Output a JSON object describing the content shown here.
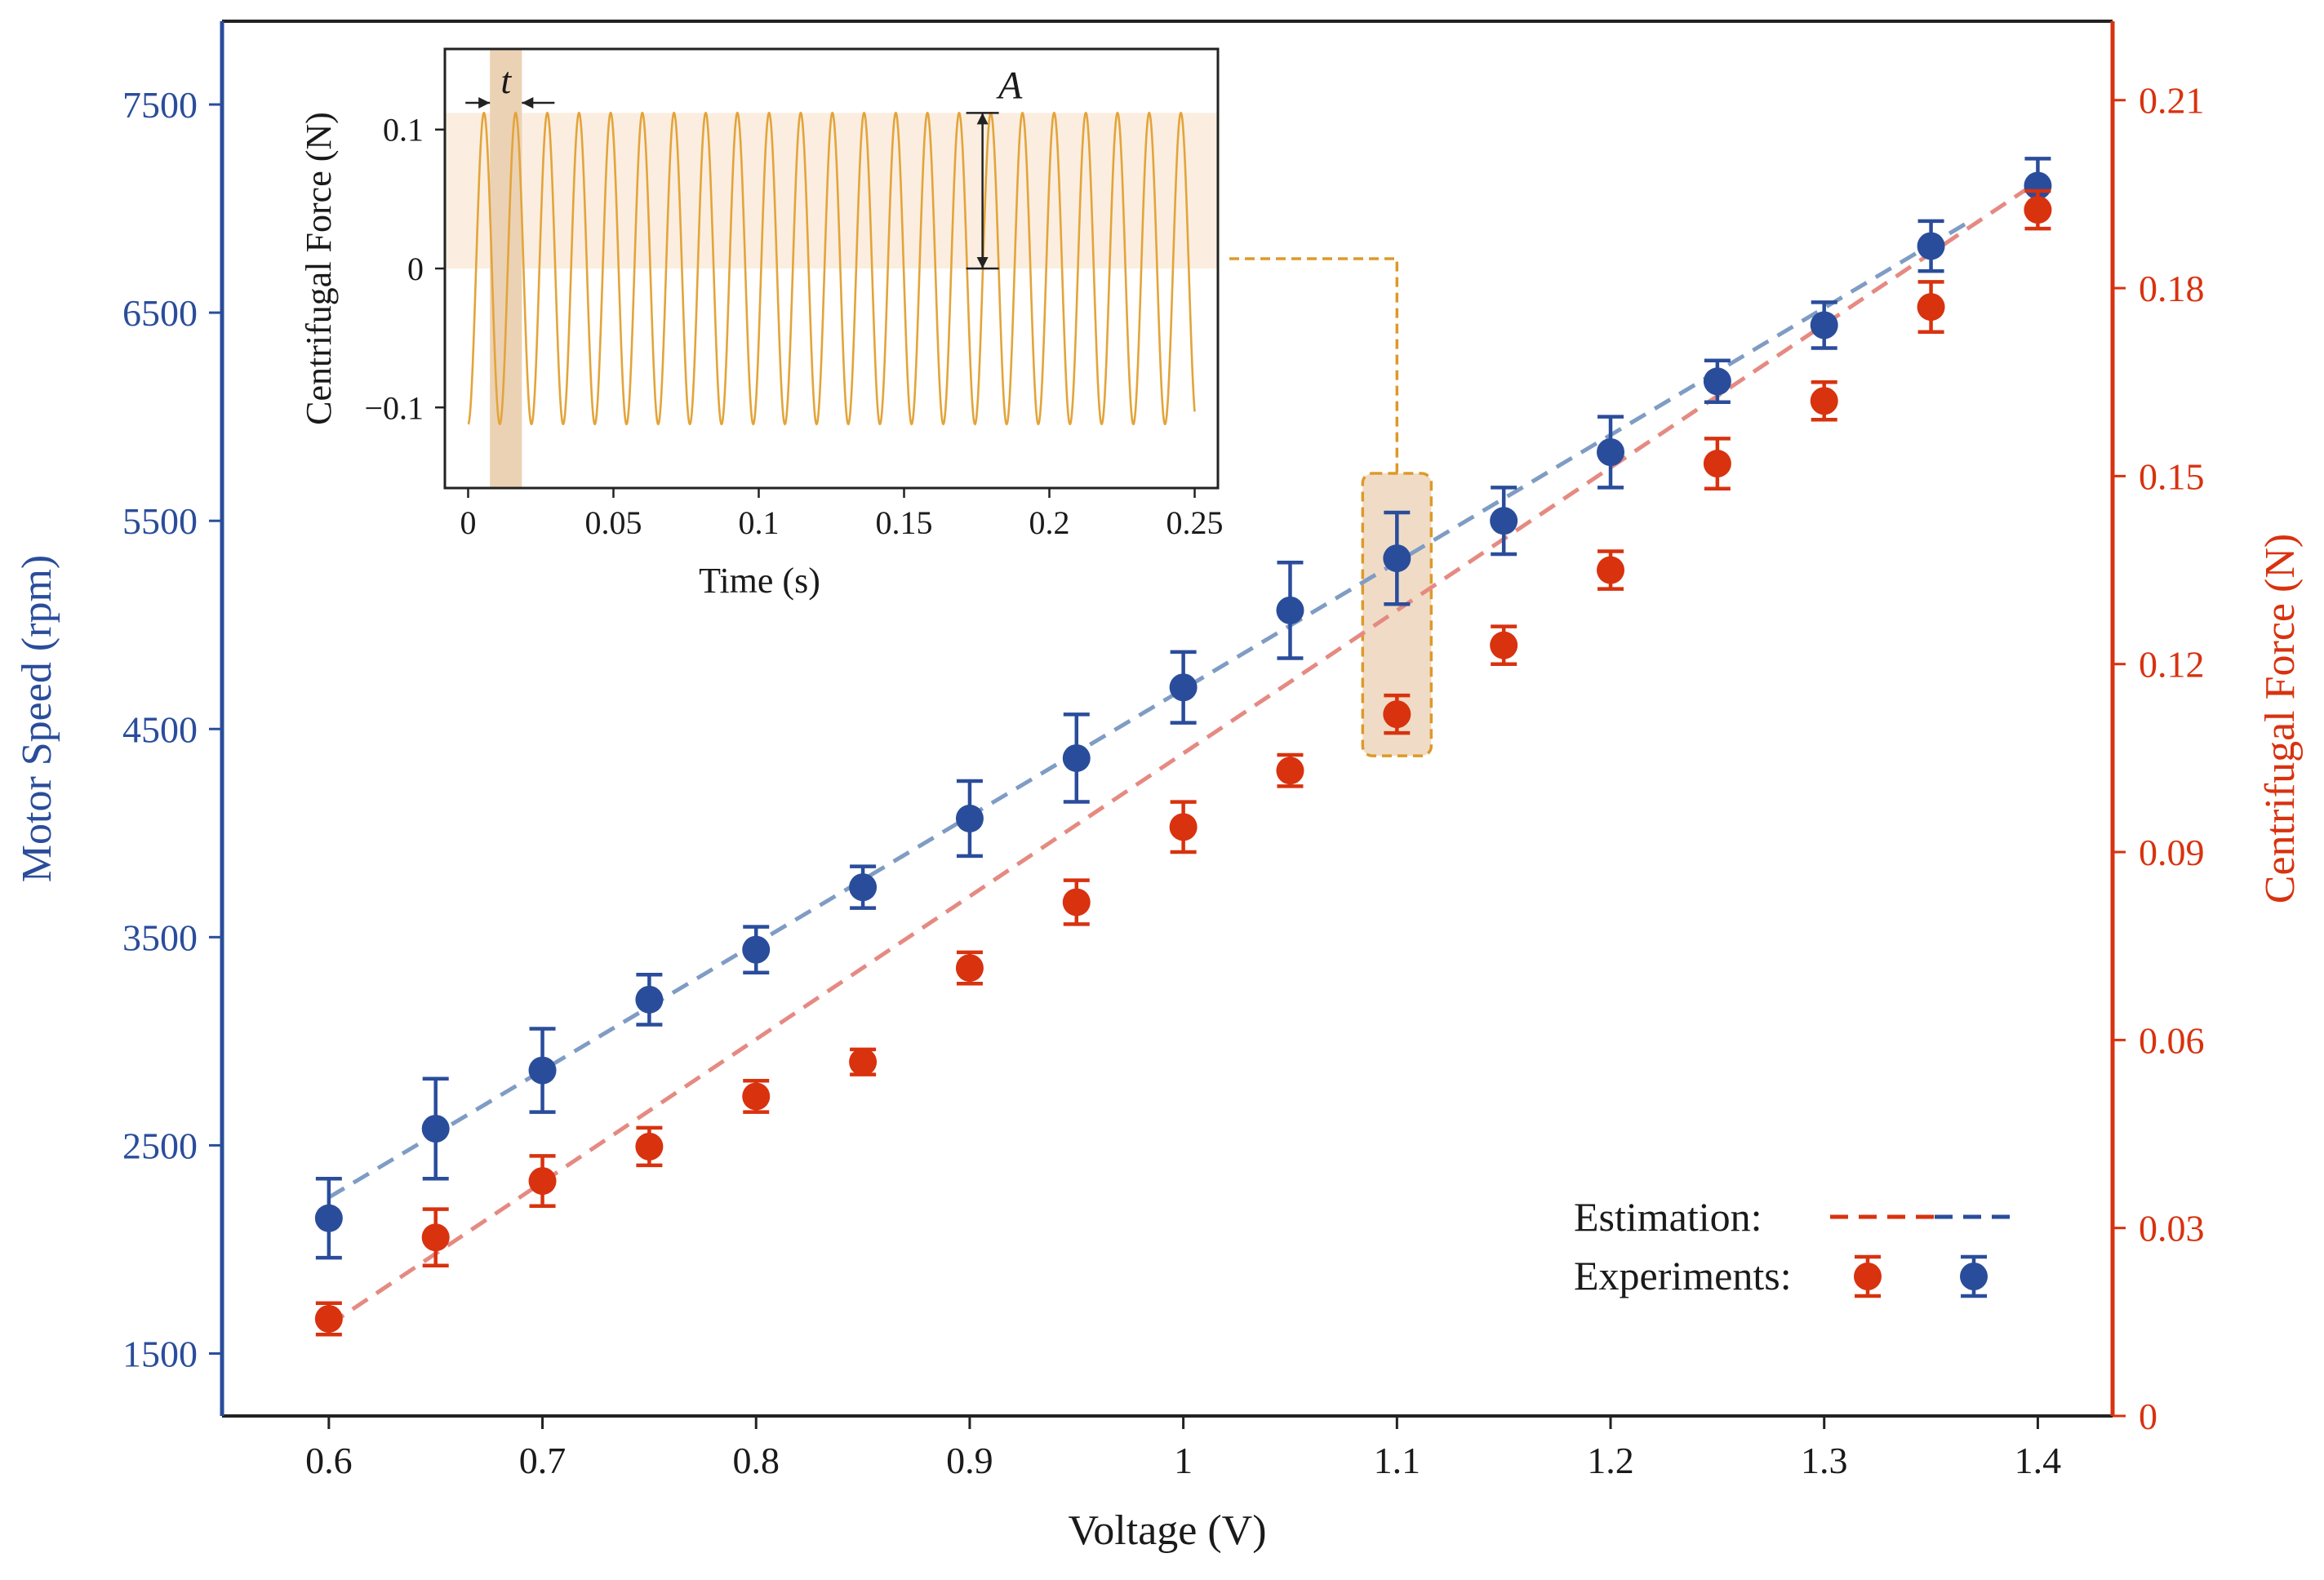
{
  "colors": {
    "speed": "#2a4d9b",
    "force": "#d8320f",
    "speed_fit": "#7f9cc4",
    "force_fit": "#e58a82",
    "inset_wave": "#e3a43a",
    "inset_shade": "#fbeee0",
    "inset_band": "#ecd2b4",
    "highlight_fill": "#f0dcc6",
    "highlight_border": "#dd9a2a",
    "axis_dark": "#222222"
  },
  "chart_data": [
    {
      "type": "scatter",
      "title": "",
      "xlabel": "Voltage (V)",
      "ylabel": "Motor Speed (rpm)",
      "y2label": "Centrifugal Force (N)",
      "xlim": [
        0.55,
        1.435
      ],
      "ylim": [
        1200,
        7900
      ],
      "y2lim": [
        0,
        0.2226
      ],
      "xticks": [
        0.6,
        0.7,
        0.8,
        0.9,
        1,
        1.1,
        1.2,
        1.3,
        1.4
      ],
      "xtick_labels": [
        "0.6",
        "0.7",
        "0.8",
        "0.9",
        "1",
        "1.1",
        "1.2",
        "1.3",
        "1.4"
      ],
      "yticks": [
        1500,
        2500,
        3500,
        4500,
        5500,
        6500,
        7500
      ],
      "ytick_labels": [
        "1500",
        "2500",
        "3500",
        "4500",
        "5500",
        "6500",
        "7500"
      ],
      "y2ticks": [
        0,
        0.03,
        0.06,
        0.09,
        0.12,
        0.15,
        0.18,
        0.21
      ],
      "y2tick_labels": [
        "0",
        "0.03",
        "0.06",
        "0.09",
        "0.12",
        "0.15",
        "0.18",
        "0.21"
      ],
      "x": [
        0.6,
        0.65,
        0.7,
        0.75,
        0.8,
        0.85,
        0.9,
        0.95,
        1.0,
        1.05,
        1.1,
        1.15,
        1.2,
        1.25,
        1.3,
        1.35,
        1.4
      ],
      "series": [
        {
          "name": "Motor Speed (experiments)",
          "axis": "left",
          "values": [
            2150,
            2580,
            2860,
            3200,
            3440,
            3740,
            4070,
            4360,
            4700,
            5070,
            5320,
            5500,
            5830,
            6170,
            6440,
            6820,
            7110
          ],
          "errors": [
            190,
            240,
            200,
            120,
            110,
            100,
            180,
            210,
            170,
            230,
            220,
            160,
            170,
            100,
            110,
            120,
            130
          ]
        },
        {
          "name": "Centrifugal Force (experiments)",
          "axis": "right",
          "values": [
            0.0155,
            0.0285,
            0.0375,
            0.043,
            0.051,
            0.0565,
            0.0715,
            0.082,
            0.094,
            0.103,
            0.112,
            0.123,
            0.135,
            0.152,
            0.162,
            0.177,
            0.1925
          ],
          "errors": [
            0.0025,
            0.0045,
            0.004,
            0.003,
            0.0025,
            0.002,
            0.0025,
            0.0035,
            0.004,
            0.0025,
            0.003,
            0.003,
            0.003,
            0.004,
            0.003,
            0.004,
            0.003
          ]
        },
        {
          "name": "Motor Speed (estimation)",
          "axis": "left",
          "style": "dashed",
          "x": [
            0.6,
            1.37
          ],
          "values": [
            2250,
            6950
          ]
        },
        {
          "name": "Centrifugal Force (estimation)",
          "axis": "right",
          "style": "dashed",
          "x": [
            0.6,
            1.4
          ],
          "values": [
            0.0145,
            0.197
          ]
        }
      ],
      "legend": {
        "placement": "bottom-right",
        "estimation_label": "Estimation:",
        "experiments_label": "Experiments:"
      },
      "highlight": {
        "x": 1.1,
        "label": ""
      }
    },
    {
      "type": "line",
      "title": "",
      "xlabel": "Time (s)",
      "ylabel": "Centrifugal Force (N)",
      "xlim": [
        -0.008,
        0.258
      ],
      "ylim": [
        -0.158,
        0.158
      ],
      "xticks": [
        0,
        0.05,
        0.1,
        0.15,
        0.2,
        0.25
      ],
      "xtick_labels": [
        "0",
        "0.05",
        "0.1",
        "0.15",
        "0.2",
        "0.25"
      ],
      "yticks": [
        -0.1,
        0,
        0.1
      ],
      "ytick_labels": [
        "−0.1",
        "0",
        "0.1"
      ],
      "signal": {
        "amplitude": 0.112,
        "period": 0.0109,
        "duration": 0.25
      },
      "shaded_band": {
        "y_from": 0.0,
        "y_to": 0.112
      },
      "period_band": {
        "x_from": 0.0075,
        "x_to": 0.0185
      },
      "annotations": {
        "period": "t",
        "amplitude": "A"
      }
    }
  ]
}
